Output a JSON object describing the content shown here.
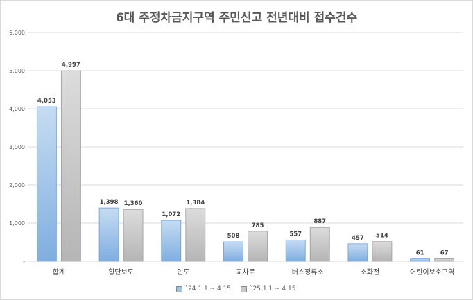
{
  "chart_data": {
    "type": "bar",
    "title": "6대 주정차금지구역 주민신고 전년대비 접수건수",
    "categories": [
      "합계",
      "횡단보도",
      "인도",
      "교차로",
      "버스정류소",
      "소화전",
      "어린이보호구역"
    ],
    "series": [
      {
        "name": "`24.1.1 ~ 4.15",
        "values": [
          4053,
          1398,
          1072,
          508,
          557,
          457,
          61
        ],
        "color": "#9dc3e6"
      },
      {
        "name": "`25.1.1 ~ 4.15",
        "values": [
          4997,
          1360,
          1384,
          785,
          887,
          514,
          67
        ],
        "color": "#c9c9c9"
      }
    ],
    "ylim": [
      0,
      6000
    ],
    "yticks": [
      0,
      1000,
      2000,
      3000,
      4000,
      5000,
      6000
    ],
    "ytick_labels": [
      "-",
      "1,000",
      "2,000",
      "3,000",
      "4,000",
      "5,000",
      "6,000"
    ],
    "grid": true,
    "legend": "bottom"
  }
}
